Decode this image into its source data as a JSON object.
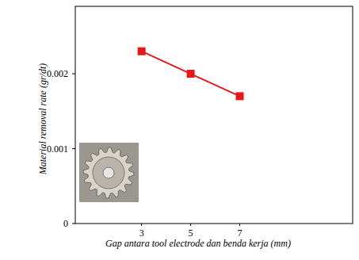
{
  "chart_data": {
    "type": "line",
    "x_label": "Gap antara tool electrode dan benda kerja (mm)",
    "y_label": "Material removal rate (gr/dt)",
    "x": [
      3,
      5,
      7
    ],
    "series": [
      {
        "name": null,
        "color": "#e3191c",
        "values": [
          0.0023,
          0.002,
          0.0017
        ],
        "marker": "square",
        "line_style": "solid"
      }
    ],
    "xlim": [
      0.3,
      11.6
    ],
    "xticks": [
      3,
      5,
      7
    ],
    "ylim": [
      0,
      0.0029
    ],
    "yticks": [
      0,
      0.001,
      0.002
    ],
    "grid": false
  }
}
